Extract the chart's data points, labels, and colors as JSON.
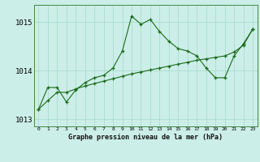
{
  "title": "Graphe pression niveau de la mer (hPa)",
  "background_color": "#cceee8",
  "grid_color": "#aaddcc",
  "line_color": "#1a6b1a",
  "x_values": [
    0,
    1,
    2,
    3,
    4,
    5,
    6,
    7,
    8,
    9,
    10,
    11,
    12,
    13,
    14,
    15,
    16,
    17,
    18,
    19,
    20,
    21,
    22,
    23
  ],
  "series1": [
    1013.2,
    1013.65,
    1013.65,
    1013.35,
    1013.6,
    1013.75,
    1013.85,
    1013.9,
    1014.05,
    1014.4,
    1015.12,
    1014.95,
    1015.05,
    1014.8,
    1014.6,
    1014.45,
    1014.4,
    1014.3,
    1014.05,
    1013.85,
    1013.85,
    1014.3,
    1014.55,
    1014.85
  ],
  "series2": [
    1013.2,
    1013.38,
    1013.55,
    1013.55,
    1013.62,
    1013.68,
    1013.73,
    1013.78,
    1013.83,
    1013.88,
    1013.93,
    1013.97,
    1014.01,
    1014.05,
    1014.09,
    1014.13,
    1014.17,
    1014.21,
    1014.24,
    1014.27,
    1014.3,
    1014.38,
    1014.52,
    1014.85
  ],
  "ylim": [
    1012.85,
    1015.35
  ],
  "yticks": [
    1013,
    1014,
    1015
  ],
  "xlim": [
    -0.5,
    23.5
  ],
  "xlabel_fontsize": 6.0,
  "ytick_fontsize": 6.5,
  "xtick_fontsize": 4.5
}
